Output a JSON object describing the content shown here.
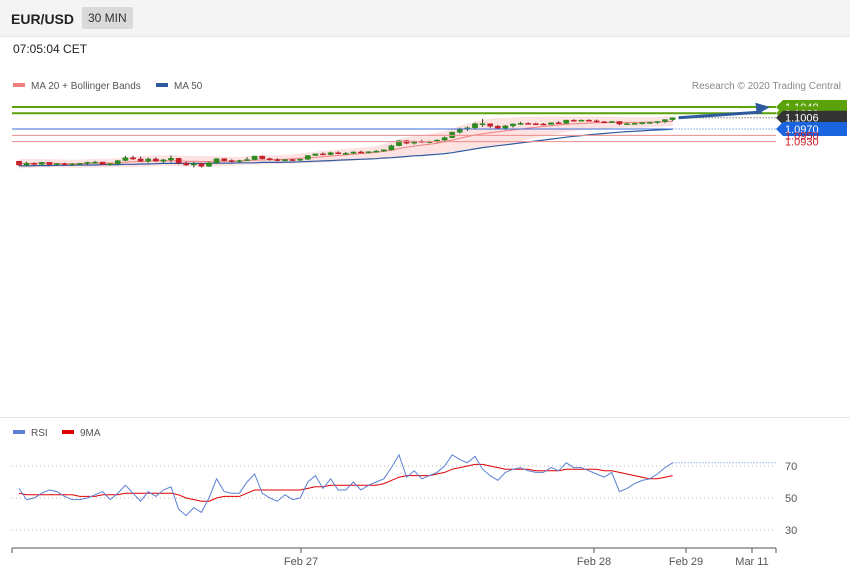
{
  "header": {
    "symbol": "EUR/USD",
    "timeframe": "30 MIN"
  },
  "timestamp": "07:05:04 CET",
  "copyright": "Research © 2020 Trading Central",
  "colors": {
    "ma20": "#f08080",
    "ma50": "#2f5a9e",
    "bands": "#fde2e2",
    "green": "#5aa10a",
    "up": "#2e8b1f",
    "down": "#c8202a",
    "rsi": "#5b7fd4",
    "rsi_ma": "#e00000"
  },
  "chart_data": [
    {
      "type": "candlestick",
      "title": "EUR/USD",
      "legend": [
        "MA 20 + Bollinger Bands",
        "MA 50"
      ],
      "x_ticks": [
        "Feb 27",
        "Feb 28",
        "Feb 29",
        "Mar 11"
      ],
      "ylim": [
        1.08,
        1.105
      ],
      "levels": [
        {
          "label": "1.1040",
          "value": 1.104,
          "kind": "resistance"
        },
        {
          "label": "1.1020",
          "value": 1.102,
          "kind": "resistance"
        },
        {
          "label": "1.1006",
          "value": 1.1006,
          "kind": "last"
        },
        {
          "label": "1.0970",
          "value": 1.097,
          "kind": "pivot"
        },
        {
          "label": "1.0950",
          "value": 1.095,
          "kind": "support"
        },
        {
          "label": "1.0930",
          "value": 1.093,
          "kind": "support"
        }
      ],
      "candles": [
        [
          1.0868,
          1.0869,
          1.0853,
          1.0856
        ],
        [
          1.0856,
          1.0866,
          1.0853,
          1.0861
        ],
        [
          1.0861,
          1.0864,
          1.0855,
          1.0858
        ],
        [
          1.0858,
          1.0866,
          1.0856,
          1.0864
        ],
        [
          1.0864,
          1.0865,
          1.0855,
          1.0857
        ],
        [
          1.0857,
          1.0862,
          1.0853,
          1.086
        ],
        [
          1.086,
          1.0863,
          1.0855,
          1.0858
        ],
        [
          1.0858,
          1.0862,
          1.0854,
          1.0859
        ],
        [
          1.0859,
          1.0862,
          1.0856,
          1.0861
        ],
        [
          1.0861,
          1.0866,
          1.0857,
          1.0864
        ],
        [
          1.0864,
          1.0869,
          1.086,
          1.0865
        ],
        [
          1.0865,
          1.0866,
          1.0856,
          1.0858
        ],
        [
          1.0858,
          1.0862,
          1.0854,
          1.086
        ],
        [
          1.086,
          1.0871,
          1.0859,
          1.087
        ],
        [
          1.087,
          1.0885,
          1.0868,
          1.0879
        ],
        [
          1.0879,
          1.0885,
          1.0872,
          1.0875
        ],
        [
          1.0875,
          1.0883,
          1.0866,
          1.0868
        ],
        [
          1.0868,
          1.0879,
          1.0863,
          1.0875
        ],
        [
          1.0875,
          1.088,
          1.0866,
          1.0868
        ],
        [
          1.0868,
          1.0875,
          1.0863,
          1.0872
        ],
        [
          1.0872,
          1.0886,
          1.0864,
          1.0877
        ],
        [
          1.0877,
          1.0878,
          1.0858,
          1.0862
        ],
        [
          1.0862,
          1.0866,
          1.0853,
          1.0856
        ],
        [
          1.0856,
          1.0866,
          1.0848,
          1.086
        ],
        [
          1.086,
          1.0861,
          1.0848,
          1.0852
        ],
        [
          1.0852,
          1.0866,
          1.085,
          1.0863
        ],
        [
          1.0863,
          1.0877,
          1.086,
          1.0876
        ],
        [
          1.0876,
          1.0877,
          1.0867,
          1.087
        ],
        [
          1.087,
          1.0874,
          1.0864,
          1.0868
        ],
        [
          1.0868,
          1.0872,
          1.0864,
          1.087
        ],
        [
          1.087,
          1.0881,
          1.0869,
          1.0873
        ],
        [
          1.0873,
          1.0885,
          1.0871,
          1.0884
        ],
        [
          1.0884,
          1.0886,
          1.0874,
          1.0876
        ],
        [
          1.0876,
          1.0879,
          1.087,
          1.0873
        ],
        [
          1.0873,
          1.0877,
          1.0868,
          1.0871
        ],
        [
          1.0871,
          1.0875,
          1.0868,
          1.0873
        ],
        [
          1.0873,
          1.0875,
          1.0869,
          1.0871
        ],
        [
          1.0871,
          1.0876,
          1.0869,
          1.0874
        ],
        [
          1.0874,
          1.0887,
          1.0872,
          1.0886
        ],
        [
          1.0886,
          1.0892,
          1.0885,
          1.0891
        ],
        [
          1.0891,
          1.0896,
          1.0887,
          1.0889
        ],
        [
          1.0889,
          1.0898,
          1.0887,
          1.0895
        ],
        [
          1.0895,
          1.0899,
          1.089,
          1.0893
        ],
        [
          1.0893,
          1.0897,
          1.0889,
          1.0893
        ],
        [
          1.0893,
          1.0899,
          1.0891,
          1.0897
        ],
        [
          1.0897,
          1.0901,
          1.0893,
          1.0895
        ],
        [
          1.0895,
          1.0899,
          1.0893,
          1.0898
        ],
        [
          1.0898,
          1.0903,
          1.0896,
          1.09
        ],
        [
          1.09,
          1.0905,
          1.0898,
          1.0904
        ],
        [
          1.0904,
          1.092,
          1.0902,
          1.0917
        ],
        [
          1.0917,
          1.0935,
          1.0915,
          1.0933
        ],
        [
          1.0933,
          1.0935,
          1.0922,
          1.0925
        ],
        [
          1.0925,
          1.0933,
          1.0921,
          1.0931
        ],
        [
          1.0931,
          1.0936,
          1.0926,
          1.0929
        ],
        [
          1.0929,
          1.0933,
          1.0925,
          1.093
        ],
        [
          1.093,
          1.0937,
          1.0926,
          1.0935
        ],
        [
          1.0935,
          1.0946,
          1.0932,
          1.0943
        ],
        [
          1.0943,
          1.0962,
          1.0941,
          1.096
        ],
        [
          1.096,
          1.0974,
          1.0956,
          1.0971
        ],
        [
          1.0971,
          1.0978,
          1.0964,
          1.0974
        ],
        [
          1.0974,
          1.099,
          1.0968,
          1.0987
        ],
        [
          1.0987,
          1.1002,
          1.0977,
          1.0987
        ],
        [
          1.0987,
          1.0988,
          1.0974,
          1.0979
        ],
        [
          1.0979,
          1.0983,
          1.097,
          1.0973
        ],
        [
          1.0973,
          1.0983,
          1.0967,
          1.098
        ],
        [
          1.098,
          1.0988,
          1.0975,
          1.0986
        ],
        [
          1.0986,
          1.0993,
          1.0983,
          1.0988
        ],
        [
          1.0988,
          1.0991,
          1.0985,
          1.0987
        ],
        [
          1.0987,
          1.099,
          1.0983,
          1.0986
        ],
        [
          1.0986,
          1.0989,
          1.0982,
          1.0985
        ],
        [
          1.0985,
          1.0991,
          1.0984,
          1.099
        ],
        [
          1.099,
          1.0995,
          1.0986,
          1.0988
        ],
        [
          1.0988,
          1.1,
          1.0987,
          1.0998
        ],
        [
          1.0998,
          1.1001,
          1.0993,
          1.0997
        ],
        [
          1.0997,
          1.1,
          1.0994,
          1.0998
        ],
        [
          1.0998,
          1.1001,
          1.0995,
          1.0996
        ],
        [
          1.0996,
          1.1,
          1.0991,
          1.0993
        ],
        [
          1.0993,
          1.0996,
          1.099,
          1.0992
        ],
        [
          1.0992,
          1.0996,
          1.0989,
          1.0994
        ],
        [
          1.0994,
          1.0995,
          1.0982,
          1.0986
        ],
        [
          1.0986,
          1.099,
          1.0983,
          1.0987
        ],
        [
          1.0987,
          1.099,
          1.0984,
          1.0988
        ],
        [
          1.0988,
          1.0992,
          1.0985,
          1.099
        ],
        [
          1.099,
          1.0993,
          1.0987,
          1.0991
        ],
        [
          1.0991,
          1.0995,
          1.0987,
          1.0994
        ],
        [
          1.0994,
          1.1001,
          1.099,
          1.1
        ],
        [
          1.1,
          1.1007,
          1.0996,
          1.1006
        ]
      ],
      "ma20": [
        1.086,
        1.0861,
        1.0861,
        1.0862,
        1.0861,
        1.0861,
        1.086,
        1.086,
        1.086,
        1.0861,
        1.0862,
        1.0862,
        1.0862,
        1.0863,
        1.0865,
        1.0866,
        1.0867,
        1.0868,
        1.0869,
        1.0869,
        1.087,
        1.0869,
        1.0868,
        1.0868,
        1.0867,
        1.0867,
        1.0868,
        1.0868,
        1.0868,
        1.0869,
        1.087,
        1.0871,
        1.0872,
        1.0872,
        1.0873,
        1.0874,
        1.0876,
        1.0877,
        1.0879,
        1.088,
        1.0882,
        1.0884,
        1.0886,
        1.0888,
        1.089,
        1.0892,
        1.0894,
        1.0896,
        1.0899,
        1.0903,
        1.0908,
        1.0912,
        1.0916,
        1.0919,
        1.0922,
        1.0925,
        1.093,
        1.0935,
        1.0941,
        1.0946,
        1.0951,
        1.0955,
        1.0958,
        1.0961,
        1.0964,
        1.0967,
        1.097,
        1.0973,
        1.0976,
        1.0978,
        1.0981,
        1.0983,
        1.0985,
        1.0987,
        1.0988,
        1.0989,
        1.099,
        1.099,
        1.0991,
        1.0991,
        1.0991,
        1.0991,
        1.0991,
        1.0992,
        1.0992,
        1.0993,
        1.0995
      ],
      "bb_upper": [
        1.0876,
        1.0876,
        1.0875,
        1.0875,
        1.0874,
        1.0874,
        1.0873,
        1.0873,
        1.0873,
        1.0874,
        1.0876,
        1.0876,
        1.0876,
        1.0877,
        1.0881,
        1.0883,
        1.0884,
        1.0885,
        1.0886,
        1.0886,
        1.0887,
        1.0886,
        1.0885,
        1.0885,
        1.0884,
        1.0884,
        1.0884,
        1.0883,
        1.0882,
        1.0882,
        1.0883,
        1.0885,
        1.0886,
        1.0886,
        1.0887,
        1.0888,
        1.089,
        1.0892,
        1.0895,
        1.0898,
        1.0901,
        1.0903,
        1.0905,
        1.0907,
        1.0909,
        1.0911,
        1.0913,
        1.0916,
        1.0922,
        1.093,
        1.0938,
        1.0944,
        1.0948,
        1.0951,
        1.0954,
        1.0958,
        1.0964,
        1.0972,
        1.098,
        1.0987,
        1.0994,
        1.0999,
        1.1003,
        1.1005,
        1.1006,
        1.1007,
        1.1008,
        1.1009,
        1.1009,
        1.101,
        1.101,
        1.101,
        1.101,
        1.101,
        1.101,
        1.101,
        1.101,
        1.1009,
        1.1009,
        1.1008,
        1.1008,
        1.1008,
        1.1008,
        1.1008,
        1.1008,
        1.1009,
        1.101
      ],
      "bb_lower": [
        1.0845,
        1.0846,
        1.0847,
        1.0849,
        1.0848,
        1.0849,
        1.0848,
        1.0847,
        1.0847,
        1.0848,
        1.0848,
        1.0848,
        1.0849,
        1.0849,
        1.0849,
        1.0849,
        1.085,
        1.0851,
        1.0852,
        1.0852,
        1.0853,
        1.0852,
        1.0851,
        1.0851,
        1.085,
        1.085,
        1.0852,
        1.0853,
        1.0854,
        1.0856,
        1.0857,
        1.0857,
        1.0858,
        1.0858,
        1.0859,
        1.086,
        1.0861,
        1.0862,
        1.0863,
        1.0863,
        1.0864,
        1.0865,
        1.0867,
        1.0869,
        1.0871,
        1.0873,
        1.0875,
        1.0876,
        1.0876,
        1.0876,
        1.0878,
        1.088,
        1.0884,
        1.0887,
        1.089,
        1.0892,
        1.0896,
        1.0898,
        1.0902,
        1.0905,
        1.0908,
        1.0911,
        1.0914,
        1.0918,
        1.0922,
        1.0927,
        1.0932,
        1.0937,
        1.0943,
        1.0947,
        1.0952,
        1.0956,
        1.096,
        1.0964,
        1.0966,
        1.0968,
        1.097,
        1.0971,
        1.0973,
        1.0974,
        1.0974,
        1.0974,
        1.0974,
        1.0976,
        1.0977,
        1.0978,
        1.098
      ],
      "ma50": [
        1.0853,
        1.0853,
        1.0854,
        1.0854,
        1.0854,
        1.0855,
        1.0855,
        1.0855,
        1.0856,
        1.0856,
        1.0856,
        1.0857,
        1.0857,
        1.0857,
        1.0858,
        1.0858,
        1.0859,
        1.0859,
        1.086,
        1.0861,
        1.0861,
        1.0861,
        1.0861,
        1.0861,
        1.0861,
        1.0861,
        1.0862,
        1.0862,
        1.0862,
        1.0863,
        1.0863,
        1.0863,
        1.0864,
        1.0864,
        1.0864,
        1.0865,
        1.0865,
        1.0866,
        1.0867,
        1.0868,
        1.0869,
        1.087,
        1.0871,
        1.0872,
        1.0873,
        1.0874,
        1.0875,
        1.0876,
        1.0878,
        1.0879,
        1.0881,
        1.0883,
        1.0885,
        1.0886,
        1.0888,
        1.089,
        1.0892,
        1.0895,
        1.0899,
        1.0903,
        1.0907,
        1.0911,
        1.0914,
        1.0917,
        1.092,
        1.0923,
        1.0926,
        1.0929,
        1.0932,
        1.0935,
        1.0938,
        1.0941,
        1.0944,
        1.0947,
        1.0949,
        1.0952,
        1.0954,
        1.0956,
        1.0958,
        1.096,
        1.0962,
        1.0963,
        1.0964,
        1.0966,
        1.0967,
        1.0968,
        1.097
      ],
      "projection": {
        "from": 1.1006,
        "to": 1.104
      }
    },
    {
      "type": "line",
      "legend": [
        "RSI",
        "9MA"
      ],
      "ylim": [
        20,
        80
      ],
      "y_ticks": [
        "70",
        "50",
        "30"
      ],
      "rsi": [
        56,
        49,
        50,
        53,
        55,
        54,
        51,
        49,
        49,
        50,
        52,
        54,
        49,
        53,
        58,
        53,
        48,
        54,
        51,
        55,
        57,
        43,
        39,
        44,
        41,
        50,
        62,
        54,
        53,
        53,
        60,
        65,
        53,
        50,
        48,
        52,
        49,
        50,
        60,
        64,
        56,
        62,
        55,
        55,
        60,
        55,
        58,
        60,
        62,
        69,
        77,
        63,
        67,
        62,
        64,
        66,
        70,
        77,
        74,
        72,
        76,
        68,
        64,
        61,
        66,
        68,
        69,
        67,
        66,
        66,
        69,
        67,
        72,
        69,
        69,
        67,
        65,
        63,
        66,
        54,
        56,
        59,
        61,
        62,
        65,
        69,
        72
      ],
      "rsi_ma": [
        53,
        52,
        52,
        52,
        52,
        52,
        52,
        52,
        51,
        51,
        51,
        52,
        52,
        52,
        53,
        53,
        53,
        53,
        53,
        53,
        53,
        52,
        50,
        49,
        48,
        48,
        50,
        51,
        51,
        51,
        53,
        55,
        55,
        55,
        55,
        55,
        55,
        55,
        56,
        57,
        57,
        58,
        58,
        58,
        58,
        58,
        58,
        58,
        59,
        61,
        63,
        64,
        64,
        64,
        64,
        65,
        66,
        68,
        69,
        70,
        71,
        71,
        70,
        69,
        68,
        68,
        68,
        68,
        67,
        67,
        67,
        67,
        68,
        68,
        68,
        68,
        68,
        67,
        67,
        66,
        65,
        64,
        63,
        62,
        62,
        63,
        64
      ]
    }
  ]
}
